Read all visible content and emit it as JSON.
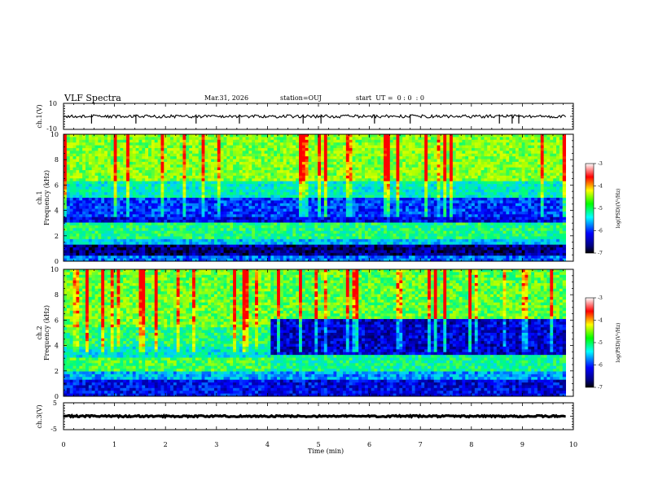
{
  "header": {
    "title": "VLF Spectra",
    "date": "Mar.31, 2026",
    "station": "station=OUJ",
    "start_ut": "start  UT =  0 : 0  : 0"
  },
  "chart_data": [
    {
      "id": "ch1-waveform",
      "type": "line",
      "title": "",
      "ylabel": "ch.1(V)",
      "ylim": [
        -10,
        10
      ],
      "yticks": [
        "10",
        "-10"
      ],
      "xlim": [
        0,
        10
      ],
      "series": [
        {
          "mean": 0,
          "noise_amplitude": 1.2,
          "end_x": 9.85
        }
      ],
      "spikes_x": [
        0.55,
        1.42,
        2.6,
        3.45,
        4.7,
        5.05,
        6.1,
        6.8,
        8.55,
        8.8,
        8.93
      ]
    },
    {
      "id": "ch1-spectrogram",
      "type": "heatmap",
      "title": "",
      "ylabel": "ch.1\nFrequency (kHz)",
      "ylim": [
        0,
        10
      ],
      "yticks": [
        "0",
        "2",
        "4",
        "6",
        "8",
        "10"
      ],
      "xlim": [
        0,
        10
      ],
      "data_end_x": 9.85,
      "colorbar": {
        "label": "log(PSD)(V²/Hz)",
        "range": [
          -7,
          -3
        ],
        "ticks": [
          "-3",
          "-4",
          "-5",
          "-6",
          "-7"
        ]
      },
      "bands": [
        {
          "from_khz": 0.0,
          "to_khz": 0.5,
          "level": -6.0
        },
        {
          "from_khz": 0.5,
          "to_khz": 1.2,
          "level": -6.9
        },
        {
          "from_khz": 1.2,
          "to_khz": 1.8,
          "level": -5.6
        },
        {
          "from_khz": 1.8,
          "to_khz": 3.1,
          "level": -5.0
        },
        {
          "from_khz": 3.1,
          "to_khz": 3.5,
          "level": -6.5
        },
        {
          "from_khz": 3.5,
          "to_khz": 5.0,
          "level": -6.2
        },
        {
          "from_khz": 5.0,
          "to_khz": 6.2,
          "level": -5.3
        },
        {
          "from_khz": 6.2,
          "to_khz": 10.0,
          "level": -4.5
        }
      ]
    },
    {
      "id": "ch2-spectrogram",
      "type": "heatmap",
      "title": "",
      "ylabel": "ch.2\nFrequency (kHz)",
      "ylim": [
        0,
        10
      ],
      "yticks": [
        "0",
        "2",
        "4",
        "6",
        "8",
        "10"
      ],
      "xlim": [
        0,
        10
      ],
      "data_end_x": 9.85,
      "regime_change_x": 4.05,
      "colorbar": {
        "label": "log(PSD)(V²/Hz)",
        "range": [
          -7,
          -3
        ],
        "ticks": [
          "-3",
          "-4",
          "-5",
          "-6",
          "-7"
        ]
      },
      "bands_before": [
        {
          "from_khz": 0.0,
          "to_khz": 1.2,
          "level": -6.4
        },
        {
          "from_khz": 1.2,
          "to_khz": 1.9,
          "level": -5.7
        },
        {
          "from_khz": 1.9,
          "to_khz": 3.0,
          "level": -4.8
        },
        {
          "from_khz": 3.0,
          "to_khz": 4.0,
          "level": -5.4
        },
        {
          "from_khz": 4.0,
          "to_khz": 5.5,
          "level": -5.0
        },
        {
          "from_khz": 5.5,
          "to_khz": 10.0,
          "level": -4.6
        }
      ],
      "bands_after": [
        {
          "from_khz": 0.0,
          "to_khz": 1.2,
          "level": -6.5
        },
        {
          "from_khz": 1.2,
          "to_khz": 1.9,
          "level": -5.8
        },
        {
          "from_khz": 1.9,
          "to_khz": 3.2,
          "level": -5.1
        },
        {
          "from_khz": 3.2,
          "to_khz": 6.0,
          "level": -6.6
        },
        {
          "from_khz": 6.0,
          "to_khz": 10.0,
          "level": -4.7
        }
      ]
    },
    {
      "id": "ch3-waveform",
      "type": "line",
      "title": "",
      "ylabel": "ch.3(V)",
      "ylim": [
        -5,
        5
      ],
      "yticks": [
        "5",
        "-5"
      ],
      "xlim": [
        0,
        10
      ],
      "xlabel": "Time (min)",
      "xticks": [
        "0",
        "1",
        "2",
        "3",
        "4",
        "5",
        "6",
        "7",
        "8",
        "9",
        "10"
      ],
      "series": [
        {
          "mean": 0,
          "noise_amplitude": 0.3,
          "end_x": 9.85
        }
      ]
    }
  ],
  "colors": {
    "colormap": [
      "#000080",
      "#0000ff",
      "#00ffff",
      "#00ff00",
      "#ffff00",
      "#ff0000",
      "#ff80ff"
    ],
    "axis": "#000000"
  }
}
